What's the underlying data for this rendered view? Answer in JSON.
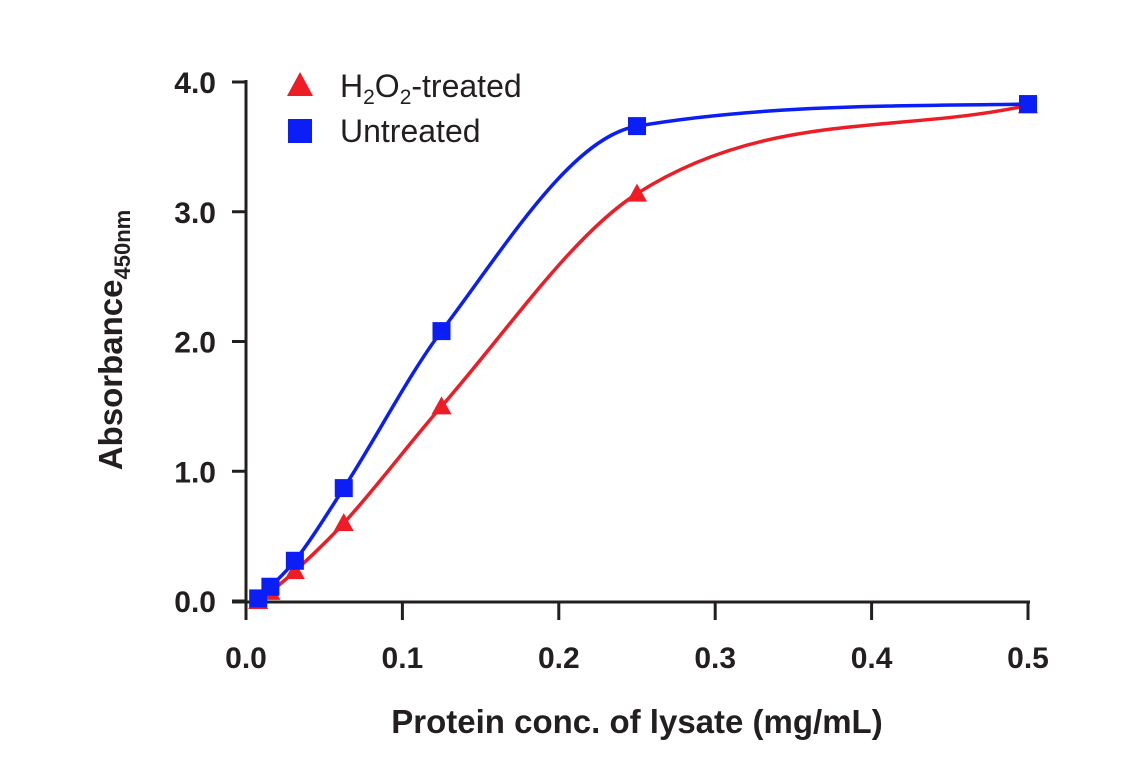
{
  "chart_data": {
    "type": "line",
    "title": "",
    "xlabel": "Protein conc. of lysate (mg/mL)",
    "ylabel": "Absorbance",
    "ylabel_subscript": "450nm",
    "xlim": [
      0,
      0.5
    ],
    "ylim": [
      0,
      4.0
    ],
    "xticks": [
      "0.0",
      "0.1",
      "0.2",
      "0.3",
      "0.4",
      "0.5"
    ],
    "yticks": [
      "0.0",
      "1.0",
      "2.0",
      "3.0",
      "4.0"
    ],
    "grid": false,
    "legend_position": "top-left",
    "x": [
      0.0078,
      0.0156,
      0.03125,
      0.0625,
      0.125,
      0.25,
      0.5
    ],
    "series": [
      {
        "name": "H2O2-treated",
        "legend": {
          "a": "H",
          "s1": "2",
          "b": "O",
          "s2": "2",
          "c": "-treated"
        },
        "color": "#ee1c25",
        "marker": "triangle",
        "values": [
          0.0,
          0.07,
          0.23,
          0.6,
          1.5,
          3.14,
          3.82
        ]
      },
      {
        "name": "Untreated",
        "legend": {
          "a": "Untreated"
        },
        "color": "#0a1ef5",
        "marker": "square",
        "values": [
          0.02,
          0.11,
          0.31,
          0.87,
          2.08,
          3.66,
          3.83
        ]
      }
    ]
  }
}
